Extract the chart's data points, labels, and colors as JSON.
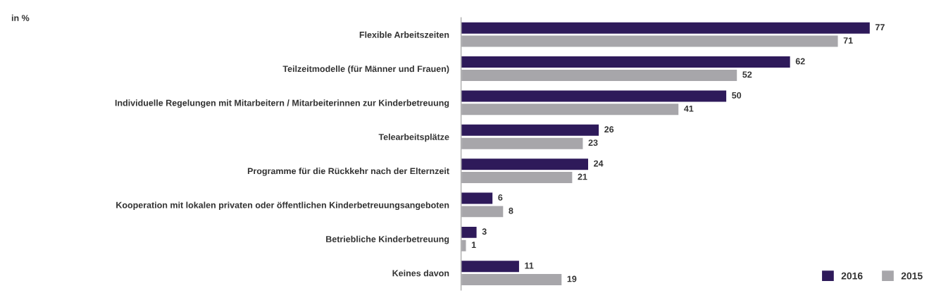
{
  "chart_data": {
    "type": "bar",
    "orientation": "horizontal",
    "title": "in %",
    "categories": [
      "Flexible Arbeitszeiten",
      "Teilzeitmodelle (für Männer und Frauen)",
      "Individuelle Regelungen mit Mitarbeitern / Mitarbeiterinnen zur Kinderbetreuung",
      "Telearbeitsplätze",
      "Programme für die Rückkehr nach der Elternzeit",
      "Kooperation mit lokalen privaten oder öffentlichen Kinderbetreuungsangeboten",
      "Betriebliche Kinderbetreuung",
      "Keines davon"
    ],
    "series": [
      {
        "name": "2016",
        "color": "#2e1a5a",
        "values": [
          77,
          62,
          50,
          26,
          24,
          6,
          3,
          11
        ]
      },
      {
        "name": "2015",
        "color": "#a7a6aa",
        "values": [
          71,
          52,
          41,
          23,
          21,
          8,
          1,
          19
        ]
      }
    ],
    "data_labels": true,
    "legend": "bottom right",
    "grid": false
  }
}
